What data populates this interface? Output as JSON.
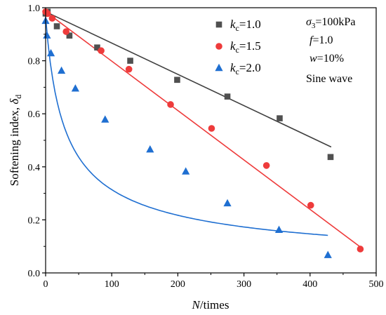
{
  "chart_data": {
    "type": "scatter",
    "xlabel": {
      "var": "N",
      "unit": "/times"
    },
    "ylabel": {
      "text": "Softening index, ",
      "var": "δ",
      "sub": "d"
    },
    "xlim": [
      0,
      500
    ],
    "ylim": [
      0.0,
      1.0
    ],
    "x_ticks": [
      0,
      100,
      200,
      300,
      400,
      500
    ],
    "y_ticks": [
      0.0,
      0.2,
      0.4,
      0.6,
      0.8,
      1.0
    ],
    "x_tick_labels": [
      "0",
      "100",
      "200",
      "300",
      "400",
      "500"
    ],
    "y_tick_labels": [
      "0.0",
      "0.2",
      "0.4",
      "0.6",
      "0.8",
      "1.0"
    ],
    "grid": false,
    "legend_position": "top-right",
    "annotations": [
      {
        "pre": "",
        "var": "σ",
        "sub": "3",
        "post": "=100kPa"
      },
      {
        "pre": "",
        "var": "f",
        "sub": "",
        "post": "=1.0"
      },
      {
        "pre": "",
        "var": "w",
        "sub": "",
        "post": "=10%"
      },
      {
        "pre": "Sine wave",
        "var": "",
        "sub": "",
        "post": ""
      }
    ],
    "series": [
      {
        "name": "kc=1.0",
        "label_var": "k",
        "label_sub": "c",
        "label_val": "=1.0",
        "marker": "square",
        "color": "#505050",
        "line_color": "#404040",
        "x": [
          0,
          3,
          17,
          36,
          78,
          128,
          199,
          275,
          354,
          431
        ],
        "y": [
          0.978,
          0.985,
          0.93,
          0.895,
          0.85,
          0.8,
          0.728,
          0.665,
          0.583,
          0.437
        ],
        "fit": {
          "x": [
            0,
            432
          ],
          "y": [
            0.985,
            0.475
          ]
        }
      },
      {
        "name": "kc=1.5",
        "label_var": "k",
        "label_sub": "c",
        "label_val": "=1.5",
        "marker": "circle",
        "color": "#ee3b3b",
        "line_color": "#ee3b3b",
        "x": [
          0,
          3,
          10,
          31,
          84,
          126,
          189,
          251,
          334,
          401,
          476
        ],
        "y": [
          0.985,
          0.978,
          0.96,
          0.91,
          0.838,
          0.768,
          0.635,
          0.545,
          0.405,
          0.255,
          0.09
        ],
        "fit": {
          "x": [
            0,
            476
          ],
          "y": [
            0.985,
            0.098
          ]
        }
      },
      {
        "name": "kc=2.0",
        "label_var": "k",
        "label_sub": "c",
        "label_val": "=2.0",
        "marker": "triangle",
        "color": "#1f6fd1",
        "line_color": "#1f6fd1",
        "x": [
          0,
          2,
          8,
          24,
          45,
          90,
          158,
          212,
          275,
          353,
          427
        ],
        "y": [
          0.95,
          0.895,
          0.828,
          0.762,
          0.695,
          0.578,
          0.465,
          0.382,
          0.262,
          0.162,
          0.067
        ],
        "fit": {
          "type": "power_decay",
          "a": 0.965,
          "b": 0.055,
          "c": 0.6,
          "x_end": 427
        }
      }
    ]
  }
}
